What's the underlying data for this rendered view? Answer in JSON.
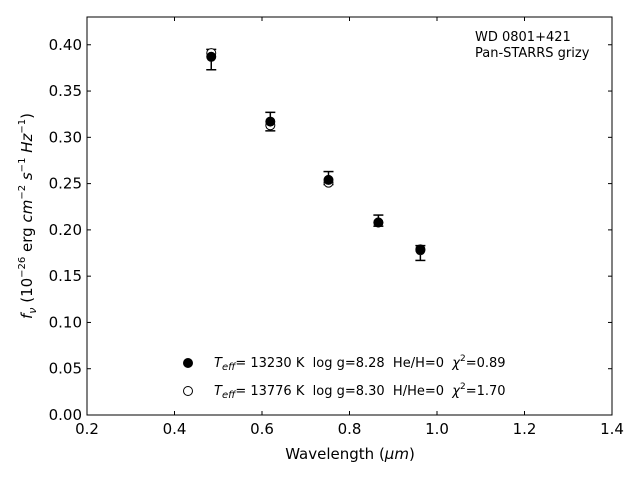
{
  "chart_data": {
    "type": "scatter",
    "xlabel_main": "Wavelength (",
    "xlabel_unit": "μm",
    "xlabel_close": ")",
    "ylabel": {
      "symbol": "f",
      "symbol_sub": "ν",
      "p1": " (10",
      "exp1": "−26",
      "p2": " erg ",
      "cm": "cm",
      "exp2": "−2",
      "s": "s",
      "exp3": "−1",
      "hz": "Hz",
      "exp4": "−1",
      "p3": ")"
    },
    "annotation": [
      "WD 0801+421",
      "Pan-STARRS grizy"
    ],
    "xlim": [
      0.2,
      1.4
    ],
    "ylim": [
      0.0,
      0.43
    ],
    "x_ticks": [
      0.2,
      0.4,
      0.6,
      0.8,
      1.0,
      1.2,
      1.4
    ],
    "x_tick_labels": [
      "0.2",
      "0.4",
      "0.6",
      "0.8",
      "1.0",
      "1.2",
      "1.4"
    ],
    "y_ticks": [
      0.0,
      0.05,
      0.1,
      0.15,
      0.2,
      0.25,
      0.3,
      0.35,
      0.4
    ],
    "y_tick_labels": [
      "0.00",
      "0.05",
      "0.10",
      "0.15",
      "0.20",
      "0.25",
      "0.30",
      "0.35",
      "0.40"
    ],
    "grid": false,
    "legend_position": "bottom-center",
    "observed": {
      "x": [
        0.484,
        0.619,
        0.752,
        0.866,
        0.962
      ],
      "y": [
        0.384,
        0.317,
        0.256,
        0.21,
        0.175
      ],
      "yerr": [
        0.011,
        0.01,
        0.007,
        0.006,
        0.008
      ]
    },
    "series": [
      {
        "name_T": "T",
        "name_T_sub": "eff",
        "name_rest": "= 13230 K  log g=8.28  He/H=0  ",
        "name_chi": "χ",
        "name_chi_sup": "2",
        "name_chi_val": "=0.89",
        "marker": "filled-circle",
        "x": [
          0.484,
          0.619,
          0.752,
          0.866,
          0.962
        ],
        "y": [
          0.387,
          0.317,
          0.254,
          0.208,
          0.179
        ]
      },
      {
        "name_T": "T",
        "name_T_sub": "eff",
        "name_rest": "= 13776 K  log g=8.30  H/He=0  ",
        "name_chi": "χ",
        "name_chi_sup": "2",
        "name_chi_val": "=1.70",
        "marker": "open-circle",
        "x": [
          0.484,
          0.619,
          0.752,
          0.866,
          0.962
        ],
        "y": [
          0.391,
          0.313,
          0.251,
          0.208,
          0.178
        ]
      }
    ]
  }
}
